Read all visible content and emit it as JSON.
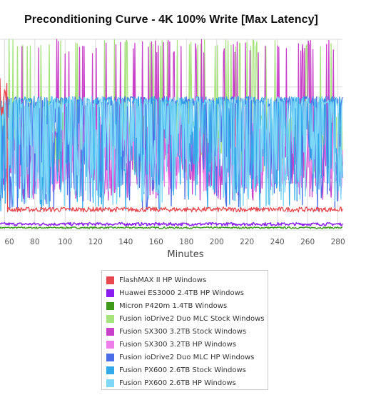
{
  "chart_data": {
    "type": "line",
    "title": "Preconditioning Curve - 4K 100% Write [Max Latency]",
    "xlabel": "Minutes",
    "ylabel": "",
    "xlim": [
      57,
      283
    ],
    "ylim": [
      0,
      100
    ],
    "x_ticks": [
      "60",
      "80",
      "100",
      "120",
      "140",
      "160",
      "180",
      "200",
      "220",
      "240",
      "260",
      "280"
    ],
    "grid": true,
    "legend_position": "bottom-center",
    "series": [
      {
        "name": "FlashMAX II HP Windows",
        "color": "#e8474f"
      },
      {
        "name": "Huawei ES3000 2.4TB HP Windows",
        "color": "#8a1ef0"
      },
      {
        "name": "Micron P420m 1.4TB Windows",
        "color": "#3f9a19"
      },
      {
        "name": "Fusion ioDrive2 Duo MLC Stock Windows",
        "color": "#a7e37c"
      },
      {
        "name": "Fusion SX300 3.2TB Stock Windows",
        "color": "#c940c9"
      },
      {
        "name": "Fusion SX300 3.2TB HP Windows",
        "color": "#ee7fe8"
      },
      {
        "name": "Fusion ioDrive2 Duo MLC HP Windows",
        "color": "#4b6ee8"
      },
      {
        "name": "Fusion PX600 2.6TB Stock Windows",
        "color": "#32a9e8"
      },
      {
        "name": "Fusion PX600 2.6TB HP Windows",
        "color": "#7fd8f7"
      }
    ]
  }
}
